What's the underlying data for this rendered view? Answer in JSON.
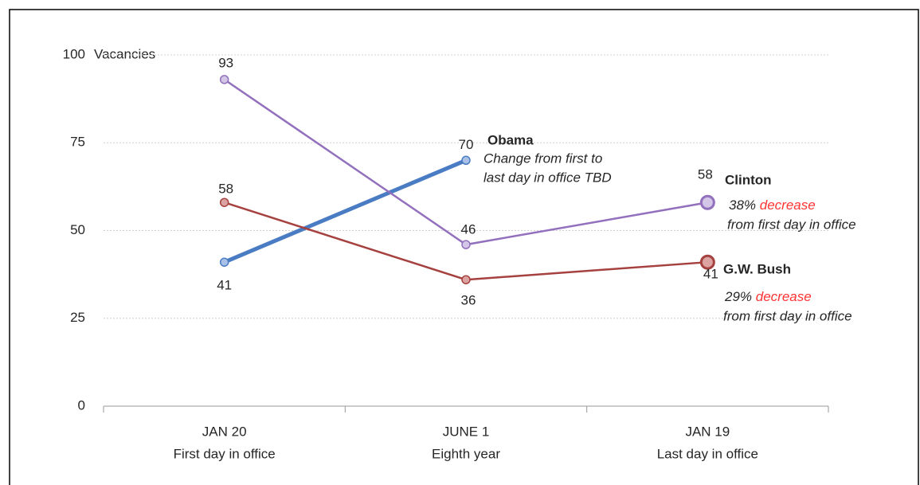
{
  "chart_data": {
    "type": "line",
    "y_label": "Vacancies",
    "categories": [
      [
        "JAN 20",
        "First day in office"
      ],
      [
        "JUNE 1",
        "Eighth year"
      ],
      [
        "JAN 19",
        "Last day in office"
      ]
    ],
    "series": [
      {
        "name": "Obama",
        "color": "#4a7cc3",
        "marker_fill": "#a9c1e6",
        "values": [
          41,
          70,
          null
        ]
      },
      {
        "name": "Clinton",
        "color": "#9270bd",
        "marker_fill": "#d3c6e6",
        "values": [
          93,
          46,
          58
        ]
      },
      {
        "name": "G.W. Bush",
        "color": "#a5413f",
        "marker_fill": "#dba4a3",
        "values": [
          58,
          36,
          41
        ]
      }
    ],
    "annotations": [
      {
        "text": [
          "Change from first to",
          "last day in office TBD"
        ]
      },
      {
        "percent": "38%",
        "highlight": "decrease",
        "text": "from first day in office"
      },
      {
        "percent": "29%",
        "highlight": "decrease",
        "text": "from first day in office"
      }
    ],
    "highlight_color": "#ff3333",
    "ylim": [
      0,
      100
    ],
    "yticks": [
      0,
      25,
      50,
      75,
      100
    ],
    "grid": true
  }
}
